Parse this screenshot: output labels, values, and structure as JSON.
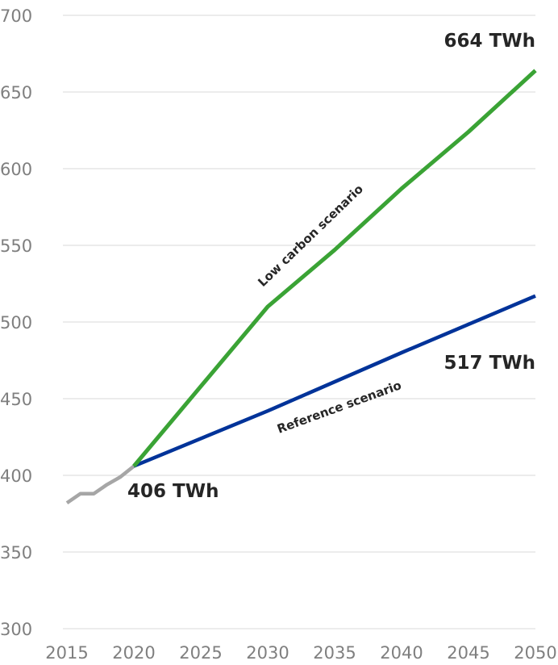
{
  "chart_data": {
    "type": "line",
    "title": "",
    "xlabel": "",
    "ylabel": "",
    "xlim": [
      2015,
      2050
    ],
    "ylim": [
      300,
      700
    ],
    "x_ticks": [
      "2015",
      "2020",
      "2025",
      "2030",
      "2035",
      "2040",
      "2045",
      "2050"
    ],
    "y_ticks": [
      "300",
      "350",
      "400",
      "450",
      "500",
      "550",
      "600",
      "650",
      "700"
    ],
    "grid": "horizontal",
    "legend": "none",
    "series": [
      {
        "color": "#a6a6a6",
        "x": [
          2015,
          2016,
          2017,
          2018,
          2019,
          2020
        ],
        "y": [
          382,
          388,
          388,
          394,
          399,
          406
        ]
      },
      {
        "name": "Reference scenario",
        "color": "#003399",
        "x": [
          2020,
          2030,
          2040,
          2050
        ],
        "y": [
          406,
          442,
          480,
          517
        ]
      },
      {
        "name": "Low carbon scenario",
        "color": "#3aa335",
        "x": [
          2020,
          2030,
          2035,
          2040,
          2045,
          2050
        ],
        "y": [
          406,
          510,
          547,
          587,
          624,
          664
        ]
      }
    ],
    "annotations": [
      {
        "text": "406 TWh"
      },
      {
        "text": "517 TWh"
      },
      {
        "text": "664 TWh"
      }
    ]
  }
}
